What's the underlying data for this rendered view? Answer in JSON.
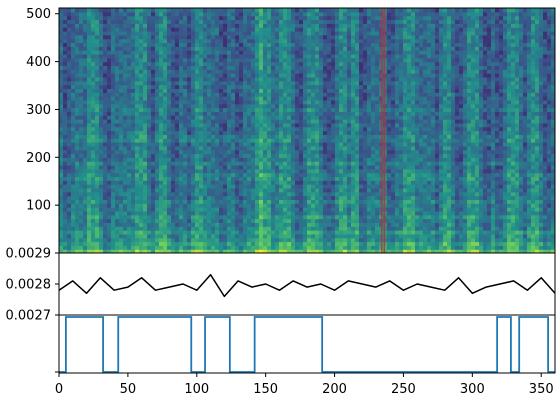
{
  "chart_data": [
    {
      "type": "heatmap",
      "panel": "spectrogram",
      "x_range": [
        0,
        360
      ],
      "ylim": [
        0,
        512
      ],
      "y_ticks": [
        "100",
        "200",
        "300",
        "400",
        "500"
      ],
      "marker_x": 235,
      "colormap": "viridis",
      "bright_bands_y": [
        20,
        45,
        75,
        110,
        160,
        190,
        240,
        300
      ],
      "bright_columns_x": [
        25,
        60,
        75,
        100,
        145,
        150,
        165,
        185,
        205,
        215,
        255,
        280,
        300,
        330,
        345
      ],
      "dark_columns_x": [
        5,
        35,
        70,
        85,
        95,
        120,
        130,
        175,
        195,
        200,
        220,
        240,
        275,
        290,
        310,
        320,
        340,
        355
      ]
    },
    {
      "type": "line",
      "panel": "signal",
      "x_range": [
        0,
        360
      ],
      "ylim": [
        0.0027,
        0.0029
      ],
      "y_ticks": [
        "0.0027",
        "0.0028",
        "0.0029"
      ],
      "color": "#000000",
      "x": [
        0,
        10,
        20,
        30,
        40,
        50,
        60,
        70,
        80,
        90,
        100,
        110,
        120,
        130,
        140,
        150,
        160,
        170,
        180,
        190,
        200,
        210,
        220,
        230,
        240,
        250,
        260,
        270,
        280,
        290,
        300,
        310,
        320,
        330,
        340,
        350,
        360
      ],
      "y": [
        0.00278,
        0.00281,
        0.00277,
        0.00282,
        0.00278,
        0.00279,
        0.00282,
        0.00278,
        0.00279,
        0.0028,
        0.00278,
        0.00283,
        0.00276,
        0.00281,
        0.00279,
        0.0028,
        0.00278,
        0.00281,
        0.00279,
        0.0028,
        0.00278,
        0.00281,
        0.0028,
        0.00279,
        0.00281,
        0.00278,
        0.0028,
        0.00279,
        0.00278,
        0.00282,
        0.00277,
        0.00279,
        0.0028,
        0.00281,
        0.00278,
        0.00282,
        0.00277
      ]
    },
    {
      "type": "line",
      "panel": "binary",
      "step": true,
      "x_range": [
        0,
        360
      ],
      "ylim": [
        0,
        1
      ],
      "color": "#1f77b4",
      "segments": [
        [
          0,
          5,
          0
        ],
        [
          5,
          32,
          1
        ],
        [
          32,
          43,
          0
        ],
        [
          43,
          96,
          1
        ],
        [
          96,
          106,
          0
        ],
        [
          106,
          124,
          1
        ],
        [
          124,
          142,
          0
        ],
        [
          142,
          191,
          1
        ],
        [
          191,
          318,
          0
        ],
        [
          318,
          328,
          1
        ],
        [
          328,
          334,
          0
        ],
        [
          334,
          355,
          1
        ],
        [
          355,
          360,
          0
        ]
      ],
      "x_ticks": [
        "0",
        "50",
        "100",
        "150",
        "200",
        "250",
        "300",
        "350"
      ]
    }
  ]
}
